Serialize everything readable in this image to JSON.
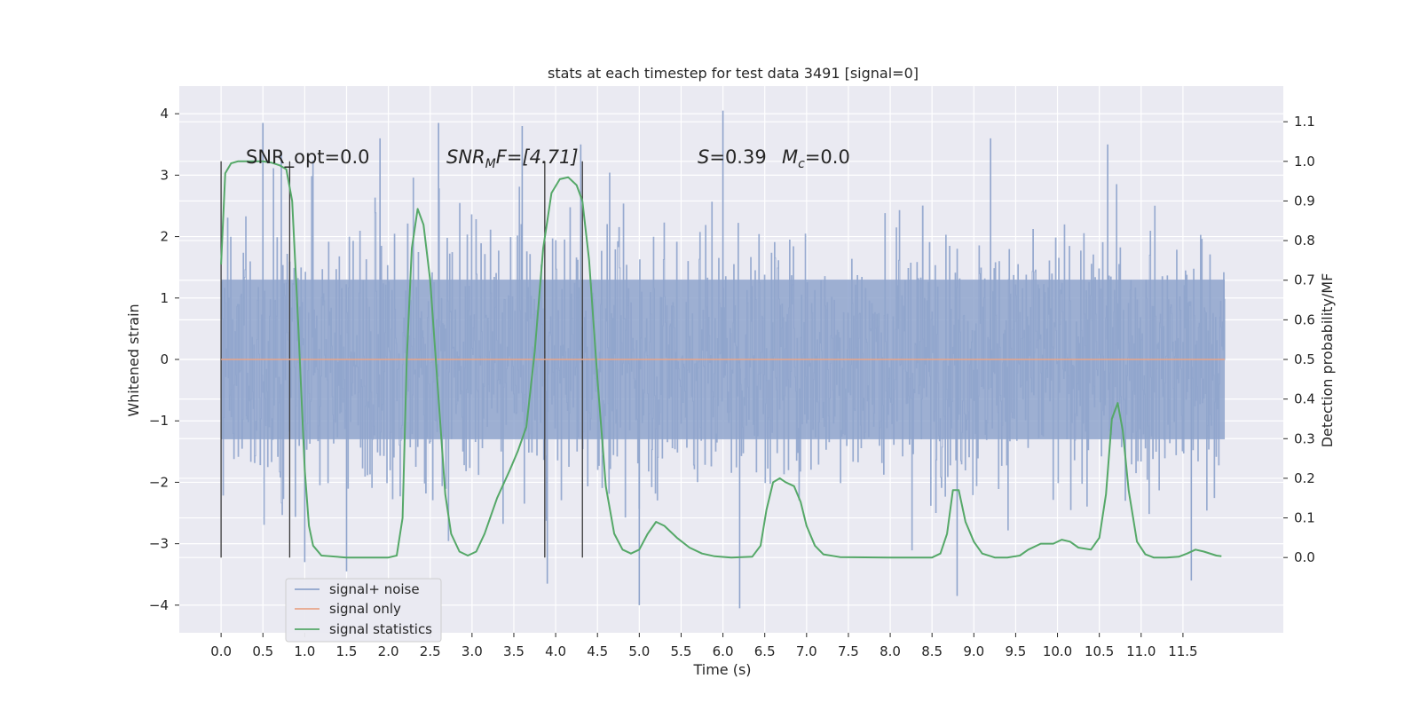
{
  "chart_data": {
    "type": "line",
    "title": "stats at each timestep for test data 3491 [signal=0]",
    "xlabel": "Time (s)",
    "ylabel_left": "Whitened strain",
    "ylabel_right": "Detection probability/MF",
    "xlim": [
      -0.5,
      12.7
    ],
    "ylim_left": [
      -4.45,
      4.45
    ],
    "ylim_right": [
      -0.19,
      1.19
    ],
    "x_ticks": [
      "0.0",
      "0.5",
      "1.0",
      "1.5",
      "2.0",
      "2.5",
      "3.0",
      "3.5",
      "4.0",
      "4.5",
      "5.0",
      "5.5",
      "6.0",
      "6.5",
      "7.0",
      "7.5",
      "8.0",
      "8.5",
      "9.0",
      "9.5",
      "10.0",
      "10.5",
      "11.0",
      "11.5"
    ],
    "y_ticks_left": [
      "4",
      "3",
      "2",
      "1",
      "0",
      "−1",
      "−2",
      "−3",
      "−4"
    ],
    "y_ticks_right": [
      "1.1",
      "1.0",
      "0.9",
      "0.8",
      "0.7",
      "0.6",
      "0.5",
      "0.4",
      "0.3",
      "0.2",
      "0.1",
      "0.0"
    ],
    "grid": true,
    "legend_position": "lower-left",
    "annotations": {
      "snr_opt": "SNR_opt=0.0",
      "snr_mf_base": "SNR",
      "snr_mf_sub": "M",
      "snr_mf_rest": "F=[4.71]",
      "s_var": "S",
      "s_value": "=0.39",
      "mc_base": "M",
      "mc_sub": "c",
      "mc_value": "=0.0"
    },
    "vertical_markers_x": [
      0.0,
      0.82,
      3.87,
      4.32
    ],
    "series": [
      {
        "name": "signal+ noise",
        "color": "#8fa4cc",
        "axis": "left",
        "x_range": [
          0.0,
          12.0
        ],
        "band_1sigma": [
          -1.3,
          1.3
        ],
        "envelope": [
          -2.5,
          2.5
        ],
        "peaks": [
          {
            "x": 0.5,
            "y": 3.85
          },
          {
            "x": 0.72,
            "y": 3.35
          },
          {
            "x": 1.9,
            "y": 3.6
          },
          {
            "x": 2.6,
            "y": 3.85
          },
          {
            "x": 3.6,
            "y": 3.8
          },
          {
            "x": 4.3,
            "y": 3.5
          },
          {
            "x": 6.0,
            "y": 4.05
          },
          {
            "x": 9.2,
            "y": 3.6
          },
          {
            "x": 10.6,
            "y": 3.5
          },
          {
            "x": 1.0,
            "y": -3.3
          },
          {
            "x": 1.5,
            "y": -3.45
          },
          {
            "x": 3.9,
            "y": -3.65
          },
          {
            "x": 5.0,
            "y": -4.0
          },
          {
            "x": 6.2,
            "y": -4.05
          },
          {
            "x": 8.8,
            "y": -3.85
          },
          {
            "x": 11.6,
            "y": -3.6
          }
        ]
      },
      {
        "name": "signal only",
        "color": "#e8a58a",
        "axis": "left",
        "x": [
          0.0,
          12.0
        ],
        "y": [
          0.0,
          0.0
        ]
      },
      {
        "name": "signal statistics",
        "color": "#55a868",
        "axis": "right",
        "x": [
          0.0,
          0.05,
          0.12,
          0.2,
          0.3,
          0.4,
          0.5,
          0.6,
          0.7,
          0.78,
          0.85,
          0.92,
          1.0,
          1.05,
          1.1,
          1.2,
          1.5,
          1.8,
          2.0,
          2.1,
          2.17,
          2.22,
          2.28,
          2.35,
          2.42,
          2.5,
          2.6,
          2.68,
          2.75,
          2.85,
          2.95,
          3.05,
          3.15,
          3.3,
          3.45,
          3.55,
          3.65,
          3.75,
          3.85,
          3.95,
          4.05,
          4.15,
          4.25,
          4.32,
          4.4,
          4.5,
          4.6,
          4.7,
          4.8,
          4.9,
          5.0,
          5.1,
          5.2,
          5.3,
          5.45,
          5.6,
          5.75,
          5.9,
          6.1,
          6.35,
          6.45,
          6.52,
          6.6,
          6.68,
          6.75,
          6.85,
          6.93,
          7.0,
          7.1,
          7.2,
          7.4,
          8.0,
          8.5,
          8.6,
          8.68,
          8.75,
          8.82,
          8.9,
          9.0,
          9.1,
          9.25,
          9.4,
          9.55,
          9.65,
          9.8,
          9.95,
          10.05,
          10.15,
          10.25,
          10.4,
          10.5,
          10.58,
          10.65,
          10.72,
          10.78,
          10.85,
          10.95,
          11.05,
          11.15,
          11.3,
          11.45,
          11.55,
          11.65,
          11.75,
          11.9,
          11.96
        ],
        "y": [
          0.74,
          0.97,
          0.995,
          1.0,
          1.0,
          1.0,
          1.0,
          0.997,
          0.99,
          0.98,
          0.9,
          0.6,
          0.22,
          0.08,
          0.03,
          0.005,
          0.0,
          0.0,
          0.0,
          0.005,
          0.1,
          0.5,
          0.78,
          0.88,
          0.84,
          0.7,
          0.4,
          0.16,
          0.06,
          0.015,
          0.005,
          0.015,
          0.06,
          0.15,
          0.22,
          0.27,
          0.33,
          0.52,
          0.78,
          0.92,
          0.955,
          0.96,
          0.94,
          0.9,
          0.75,
          0.45,
          0.18,
          0.06,
          0.02,
          0.01,
          0.02,
          0.06,
          0.09,
          0.08,
          0.05,
          0.025,
          0.01,
          0.003,
          0.0,
          0.002,
          0.03,
          0.12,
          0.19,
          0.2,
          0.19,
          0.18,
          0.14,
          0.08,
          0.03,
          0.008,
          0.001,
          0.0,
          0.0,
          0.01,
          0.06,
          0.17,
          0.17,
          0.09,
          0.04,
          0.01,
          0.0,
          0.0,
          0.005,
          0.02,
          0.035,
          0.035,
          0.045,
          0.04,
          0.025,
          0.02,
          0.05,
          0.16,
          0.35,
          0.39,
          0.32,
          0.17,
          0.04,
          0.008,
          0.0,
          0.0,
          0.002,
          0.01,
          0.02,
          0.015,
          0.005,
          0.003
        ]
      }
    ]
  }
}
